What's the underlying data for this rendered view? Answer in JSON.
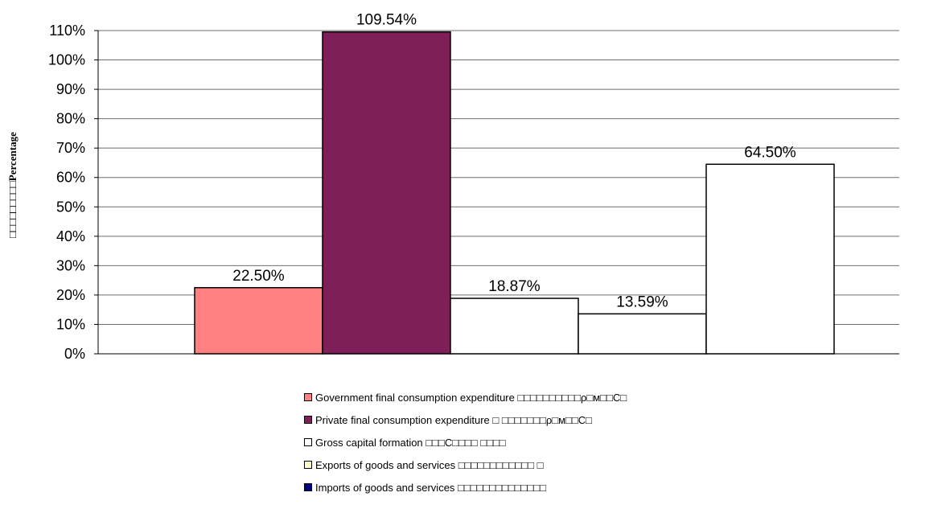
{
  "chart_data": {
    "type": "bar",
    "ylabel": "□□□□□□□□□Percentage",
    "xlabel": "",
    "ylim": [
      0,
      110
    ],
    "ytick_step": 10,
    "grid": true,
    "legend_position": "bottom",
    "series": [
      {
        "name": "Government final consumption expenditure □□□□□□□□□□ρ□м□□C□",
        "value": 22.5,
        "label": "22.50%",
        "color": "#ff8080"
      },
      {
        "name": "Private final consumption expenditure □ □□□□□□□ρ□м□□C□",
        "value": 109.54,
        "label": "109.54%",
        "color": "#7f1f5a"
      },
      {
        "name": "Gross capital formation □□□C□□□□ □□□□",
        "value": 18.87,
        "label": "18.87%",
        "color": "#ffffff"
      },
      {
        "name": "Exports of goods and services □□□□□□□□□□□□ □",
        "value": 13.59,
        "label": "13.59%",
        "color": "#ffffcc"
      },
      {
        "name": "Imports of goods and services □□□□□□□□□□□□□□",
        "value": 64.5,
        "label": "64.50%",
        "color": "#000080"
      }
    ]
  }
}
